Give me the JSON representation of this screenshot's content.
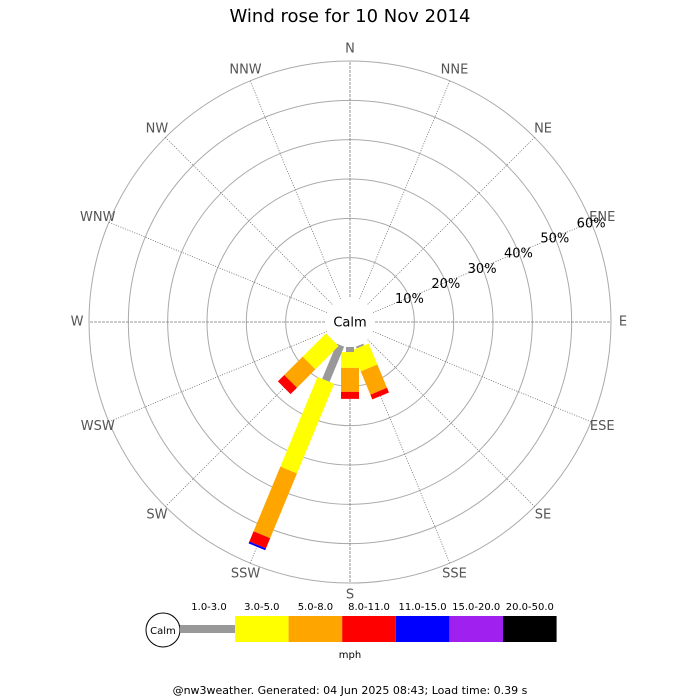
{
  "chart_data": {
    "type": "windrose",
    "title": "Wind rose for 10 Nov 2014",
    "categories": [
      "N",
      "NNE",
      "NE",
      "ENE",
      "E",
      "ESE",
      "SE",
      "SSE",
      "S",
      "SSW",
      "SW",
      "WSW",
      "W",
      "WNW",
      "NW",
      "NNW"
    ],
    "calm_label": "Calm",
    "rlim": [
      0,
      60
    ],
    "rticks": [
      {
        "value": 10,
        "label": "10%"
      },
      {
        "value": 20,
        "label": "20%"
      },
      {
        "value": 30,
        "label": "30%"
      },
      {
        "value": 40,
        "label": "40%"
      },
      {
        "value": 50,
        "label": "50%"
      },
      {
        "value": 60,
        "label": "60%"
      }
    ],
    "series": [
      {
        "name": "1.0-3.0",
        "color": "#999999",
        "values": [
          0,
          0,
          0,
          0,
          0,
          0,
          0,
          0.5,
          1.3,
          9.7,
          0,
          0,
          0,
          0,
          0,
          0
        ]
      },
      {
        "name": "3.0-5.0",
        "color": "#ffff00",
        "values": [
          0,
          0,
          0,
          0,
          0,
          0,
          0,
          5.8,
          4,
          24.7,
          8.4,
          0,
          0,
          0,
          0,
          0
        ]
      },
      {
        "name": "5.0-8.0",
        "color": "#ffa500",
        "values": [
          0,
          0,
          0,
          0,
          0,
          0,
          0,
          6.4,
          6.1,
          17.8,
          6.6,
          0,
          0,
          0,
          0,
          0
        ]
      },
      {
        "name": "8.0-11.0",
        "color": "#ff0000",
        "values": [
          0,
          0,
          0,
          0,
          0,
          0,
          0,
          1.3,
          1.8,
          2.8,
          2.3,
          0,
          0,
          0,
          0,
          0
        ]
      },
      {
        "name": "11.0-15.0",
        "color": "#0000ff",
        "values": [
          0,
          0,
          0,
          0,
          0,
          0,
          0,
          0,
          0,
          0.5,
          0,
          0,
          0,
          0,
          0,
          0
        ]
      },
      {
        "name": "15.0-20.0",
        "color": "#a020f0",
        "values": [
          0,
          0,
          0,
          0,
          0,
          0,
          0,
          0,
          0,
          0,
          0,
          0,
          0,
          0,
          0,
          0
        ]
      },
      {
        "name": "20.0-50.0",
        "color": "#000000",
        "values": [
          0,
          0,
          0,
          0,
          0,
          0,
          0,
          0,
          0,
          0,
          0,
          0,
          0,
          0,
          0,
          0
        ]
      }
    ],
    "unit": "mph",
    "footer": "@nw3weather. Generated: 04 Jun 2025 08:43; Load time: 0.39 s"
  }
}
